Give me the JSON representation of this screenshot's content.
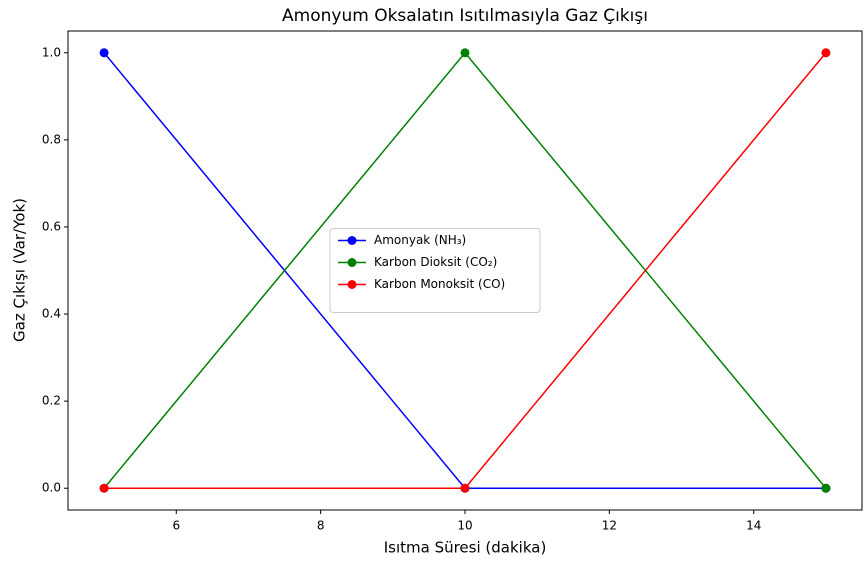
{
  "chart_data": {
    "type": "line",
    "title": "Amonyum Oksalatın Isıtılmasıyla Gaz Çıkışı",
    "xlabel": "Isıtma Süresi (dakika)",
    "ylabel": "Gaz Çıkışı (Var/Yok)",
    "x": [
      5,
      10,
      15
    ],
    "series": [
      {
        "name": "Amonyak (NH₃)",
        "color": "#0000ff",
        "values": [
          1,
          0,
          0
        ]
      },
      {
        "name": "Karbon Dioksit (CO₂)",
        "color": "#008000",
        "values": [
          0,
          1,
          0
        ]
      },
      {
        "name": "Karbon Monoksit (CO)",
        "color": "#ff0000",
        "values": [
          0,
          0,
          1
        ]
      }
    ],
    "xlim": [
      4.5,
      15.5
    ],
    "xticks": [
      6,
      8,
      10,
      12,
      14
    ],
    "ylim": [
      -0.05,
      1.05
    ],
    "yticks": [
      {
        "value": 0,
        "label": "0.0"
      },
      0.2,
      0.4,
      0.6,
      0.8,
      {
        "value": 1,
        "label": "1.0"
      }
    ],
    "legend": "center"
  }
}
